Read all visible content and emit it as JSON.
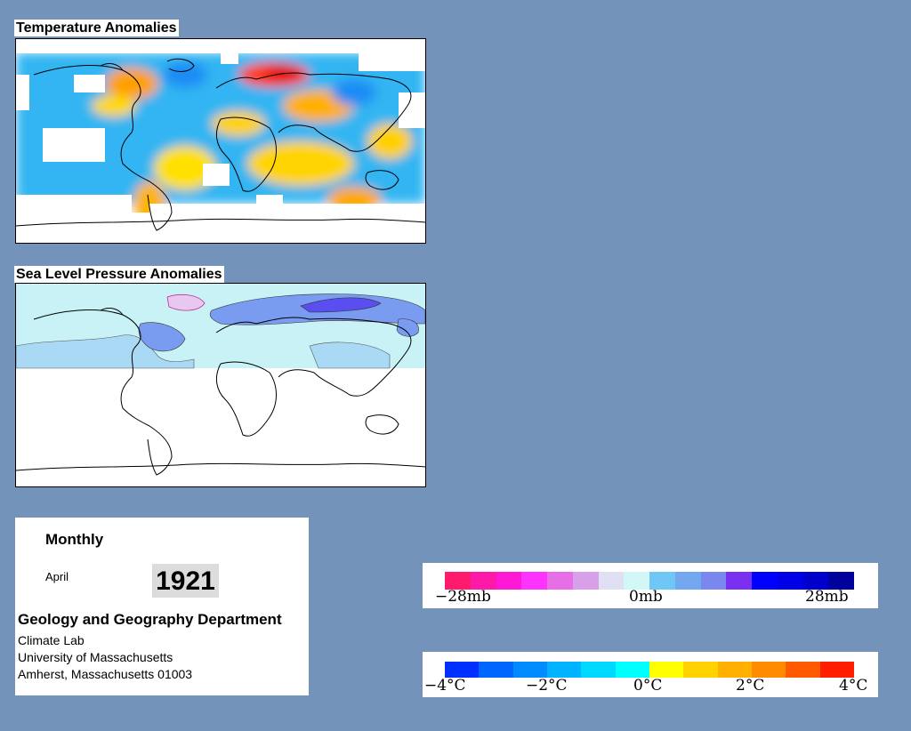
{
  "panels": {
    "temperature": {
      "title": "Temperature Anomalies"
    },
    "pressure": {
      "title": "Sea Level Pressure Anomalies"
    }
  },
  "info": {
    "frequency": "Monthly",
    "month": "April",
    "year": "1921",
    "department": "Geology and Geography Department",
    "address": [
      "Climate Lab",
      "University of Massachusetts",
      "Amherst, Massachusetts 01003"
    ]
  },
  "pressure_legend": {
    "colors": [
      "#ff1a6e",
      "#ff19a8",
      "#ff19d6",
      "#ff33ff",
      "#e66ee6",
      "#d9a0ea",
      "#e0e0f5",
      "#d2f7f7",
      "#6fc7f5",
      "#73a7f0",
      "#7a87ee",
      "#7a30f0",
      "#0000ff",
      "#0000e6",
      "#0000cc",
      "#00009c"
    ],
    "ticks": [
      "−28mb",
      "0mb",
      "28mb"
    ]
  },
  "temperature_legend": {
    "colors": [
      "#0030ff",
      "#0066ff",
      "#008cff",
      "#00b3ff",
      "#00d9ff",
      "#00ffff",
      "#ffff00",
      "#ffd200",
      "#ffb000",
      "#ff8c00",
      "#ff5a00",
      "#ff1e00"
    ],
    "ticks": [
      "−4°C",
      "−2°C",
      "0°C",
      "2°C",
      "4°C"
    ]
  }
}
